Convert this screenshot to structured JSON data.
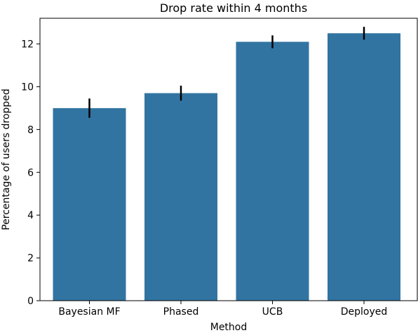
{
  "chart_data": {
    "type": "bar",
    "title": "Drop rate within 4 months",
    "xlabel": "Method",
    "ylabel": "Percentage of users dropped",
    "categories": [
      "Bayesian MF",
      "Phased",
      "UCB",
      "Deployed"
    ],
    "values": [
      9.0,
      9.7,
      12.1,
      12.5
    ],
    "error_bars": [
      {
        "low": 8.55,
        "high": 9.45
      },
      {
        "low": 9.35,
        "high": 10.05
      },
      {
        "low": 11.8,
        "high": 12.4
      },
      {
        "low": 12.2,
        "high": 12.8
      }
    ],
    "ylim": [
      0,
      13.2
    ],
    "yticks": [
      0,
      2,
      4,
      6,
      8,
      10,
      12
    ],
    "bar_color": "#3274a1",
    "error_color": "#000000",
    "grid": false,
    "legend": "none"
  }
}
